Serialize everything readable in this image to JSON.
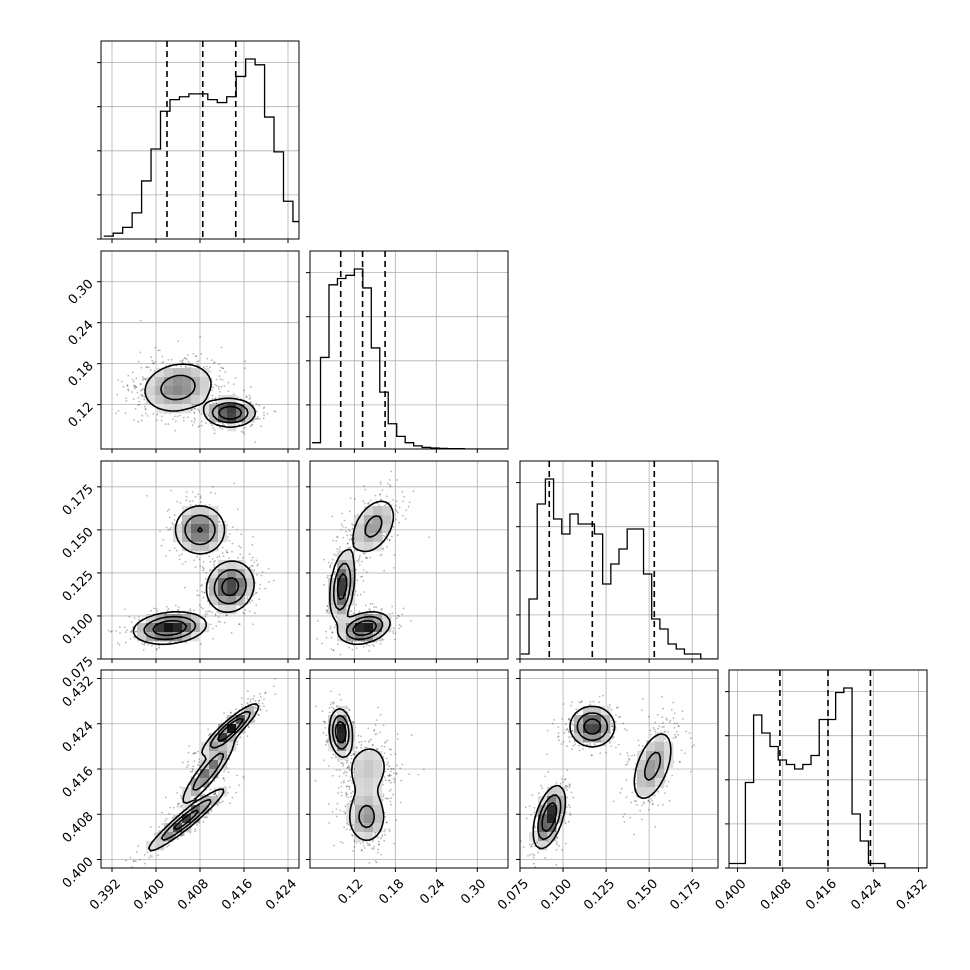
{
  "chart_data": {
    "type": "scatter",
    "subtype": "corner_plot",
    "grid": true,
    "parameters": [
      {
        "range": [
          0.39,
          0.426
        ],
        "ticks": [
          "0.392",
          "0.400",
          "0.408",
          "0.416",
          "0.424"
        ],
        "tick_values": [
          0.392,
          0.4,
          0.408,
          0.416,
          0.424
        ],
        "quantiles": [
          0.402,
          0.4085,
          0.4145
        ]
      },
      {
        "range": [
          0.055,
          0.345
        ],
        "ticks": [
          "0.12",
          "0.18",
          "0.24",
          "0.30"
        ],
        "tick_values": [
          0.12,
          0.18,
          0.24,
          0.3
        ],
        "quantiles": [
          0.1,
          0.132,
          0.165
        ]
      },
      {
        "range": [
          0.075,
          0.19
        ],
        "ticks": [
          "0.075",
          "0.100",
          "0.125",
          "0.150",
          "0.175"
        ],
        "tick_values": [
          0.075,
          0.1,
          0.125,
          0.15,
          0.175
        ],
        "quantiles": [
          0.092,
          0.117,
          0.153
        ]
      },
      {
        "range": [
          0.3985,
          0.4335
        ],
        "ticks": [
          "0.400",
          "0.408",
          "0.416",
          "0.424",
          "0.432"
        ],
        "tick_values": [
          0.4,
          0.408,
          0.416,
          0.424,
          0.432
        ],
        "quantiles": [
          0.4075,
          0.416,
          0.4235
        ]
      }
    ],
    "histograms": [
      {
        "param": 0,
        "edges_start": 0.3905,
        "bin_width": 0.00172,
        "counts": [
          1,
          2,
          4,
          9,
          20,
          31,
          44,
          48,
          49,
          50,
          50,
          48,
          47,
          49,
          56,
          62,
          60,
          42,
          30,
          13,
          6,
          2,
          1,
          0
        ]
      },
      {
        "param": 1,
        "edges_start": 0.058,
        "bin_width": 0.0124,
        "counts": [
          2,
          29,
          52,
          54,
          55,
          57,
          51,
          32,
          18,
          8,
          4,
          2,
          1,
          0.5,
          0.3,
          0.2,
          0.1,
          0.1,
          0,
          0,
          0,
          0,
          0
        ]
      },
      {
        "param": 2,
        "edges_start": 0.0755,
        "bin_width": 0.00475,
        "counts": [
          1,
          12,
          31,
          36,
          28,
          25,
          29,
          27,
          27,
          25,
          15,
          19,
          22,
          26,
          26,
          17,
          8,
          6,
          3,
          2,
          1,
          1,
          0,
          0
        ]
      },
      {
        "param": 3,
        "edges_start": 0.3985,
        "bin_width": 0.00145,
        "counts": [
          1,
          1,
          19,
          34,
          30,
          27,
          24,
          23,
          22,
          23,
          25,
          33,
          33,
          39,
          40,
          12,
          6,
          1,
          1,
          0,
          0,
          0,
          0,
          0
        ]
      }
    ],
    "density_modes": [
      {
        "x": 0,
        "y": 1,
        "components": [
          {
            "mx": 0.404,
            "my": 0.145,
            "sx": 0.0035,
            "sy": 0.02,
            "rho": 0.15,
            "w": 0.62
          },
          {
            "mx": 0.4135,
            "my": 0.108,
            "sx": 0.0022,
            "sy": 0.01,
            "rho": 0.0,
            "w": 0.38
          }
        ]
      },
      {
        "x": 0,
        "y": 2,
        "components": [
          {
            "mx": 0.4025,
            "my": 0.093,
            "sx": 0.0032,
            "sy": 0.0045,
            "rho": 0.2,
            "w": 0.36
          },
          {
            "mx": 0.408,
            "my": 0.15,
            "sx": 0.0024,
            "sy": 0.0075,
            "rho": 0.0,
            "w": 0.3
          },
          {
            "mx": 0.4135,
            "my": 0.117,
            "sx": 0.0022,
            "sy": 0.0075,
            "rho": 0.1,
            "w": 0.34
          }
        ]
      },
      {
        "x": 1,
        "y": 2,
        "components": [
          {
            "mx": 0.102,
            "my": 0.117,
            "sx": 0.009,
            "sy": 0.01,
            "rho": 0.3,
            "w": 0.34
          },
          {
            "mx": 0.148,
            "my": 0.152,
            "sx": 0.018,
            "sy": 0.009,
            "rho": 0.4,
            "w": 0.3
          },
          {
            "mx": 0.135,
            "my": 0.093,
            "sx": 0.018,
            "sy": 0.0045,
            "rho": 0.3,
            "w": 0.36
          }
        ]
      },
      {
        "x": 0,
        "y": 3,
        "components": [
          {
            "mx": 0.4055,
            "my": 0.407,
            "sx": 0.0035,
            "sy": 0.0028,
            "rho": 0.95,
            "w": 0.36
          },
          {
            "mx": 0.4095,
            "my": 0.4155,
            "sx": 0.0025,
            "sy": 0.003,
            "rho": 0.9,
            "w": 0.3
          },
          {
            "mx": 0.4135,
            "my": 0.423,
            "sx": 0.0025,
            "sy": 0.0022,
            "rho": 0.9,
            "w": 0.34
          }
        ]
      },
      {
        "x": 1,
        "y": 3,
        "components": [
          {
            "mx": 0.1,
            "my": 0.4225,
            "sx": 0.008,
            "sy": 0.002,
            "rho": -0.1,
            "w": 0.34
          },
          {
            "mx": 0.14,
            "my": 0.416,
            "sx": 0.02,
            "sy": 0.003,
            "rho": 0.1,
            "w": 0.3
          },
          {
            "mx": 0.138,
            "my": 0.4075,
            "sx": 0.015,
            "sy": 0.0025,
            "rho": 0.0,
            "w": 0.36
          }
        ]
      },
      {
        "x": 2,
        "y": 3,
        "components": [
          {
            "mx": 0.092,
            "my": 0.4075,
            "sx": 0.0045,
            "sy": 0.0027,
            "rho": 0.5,
            "w": 0.36
          },
          {
            "mx": 0.117,
            "my": 0.4235,
            "sx": 0.0065,
            "sy": 0.0018,
            "rho": 0.0,
            "w": 0.34
          },
          {
            "mx": 0.152,
            "my": 0.4165,
            "sx": 0.0065,
            "sy": 0.0035,
            "rho": 0.5,
            "w": 0.3
          }
        ]
      }
    ]
  }
}
